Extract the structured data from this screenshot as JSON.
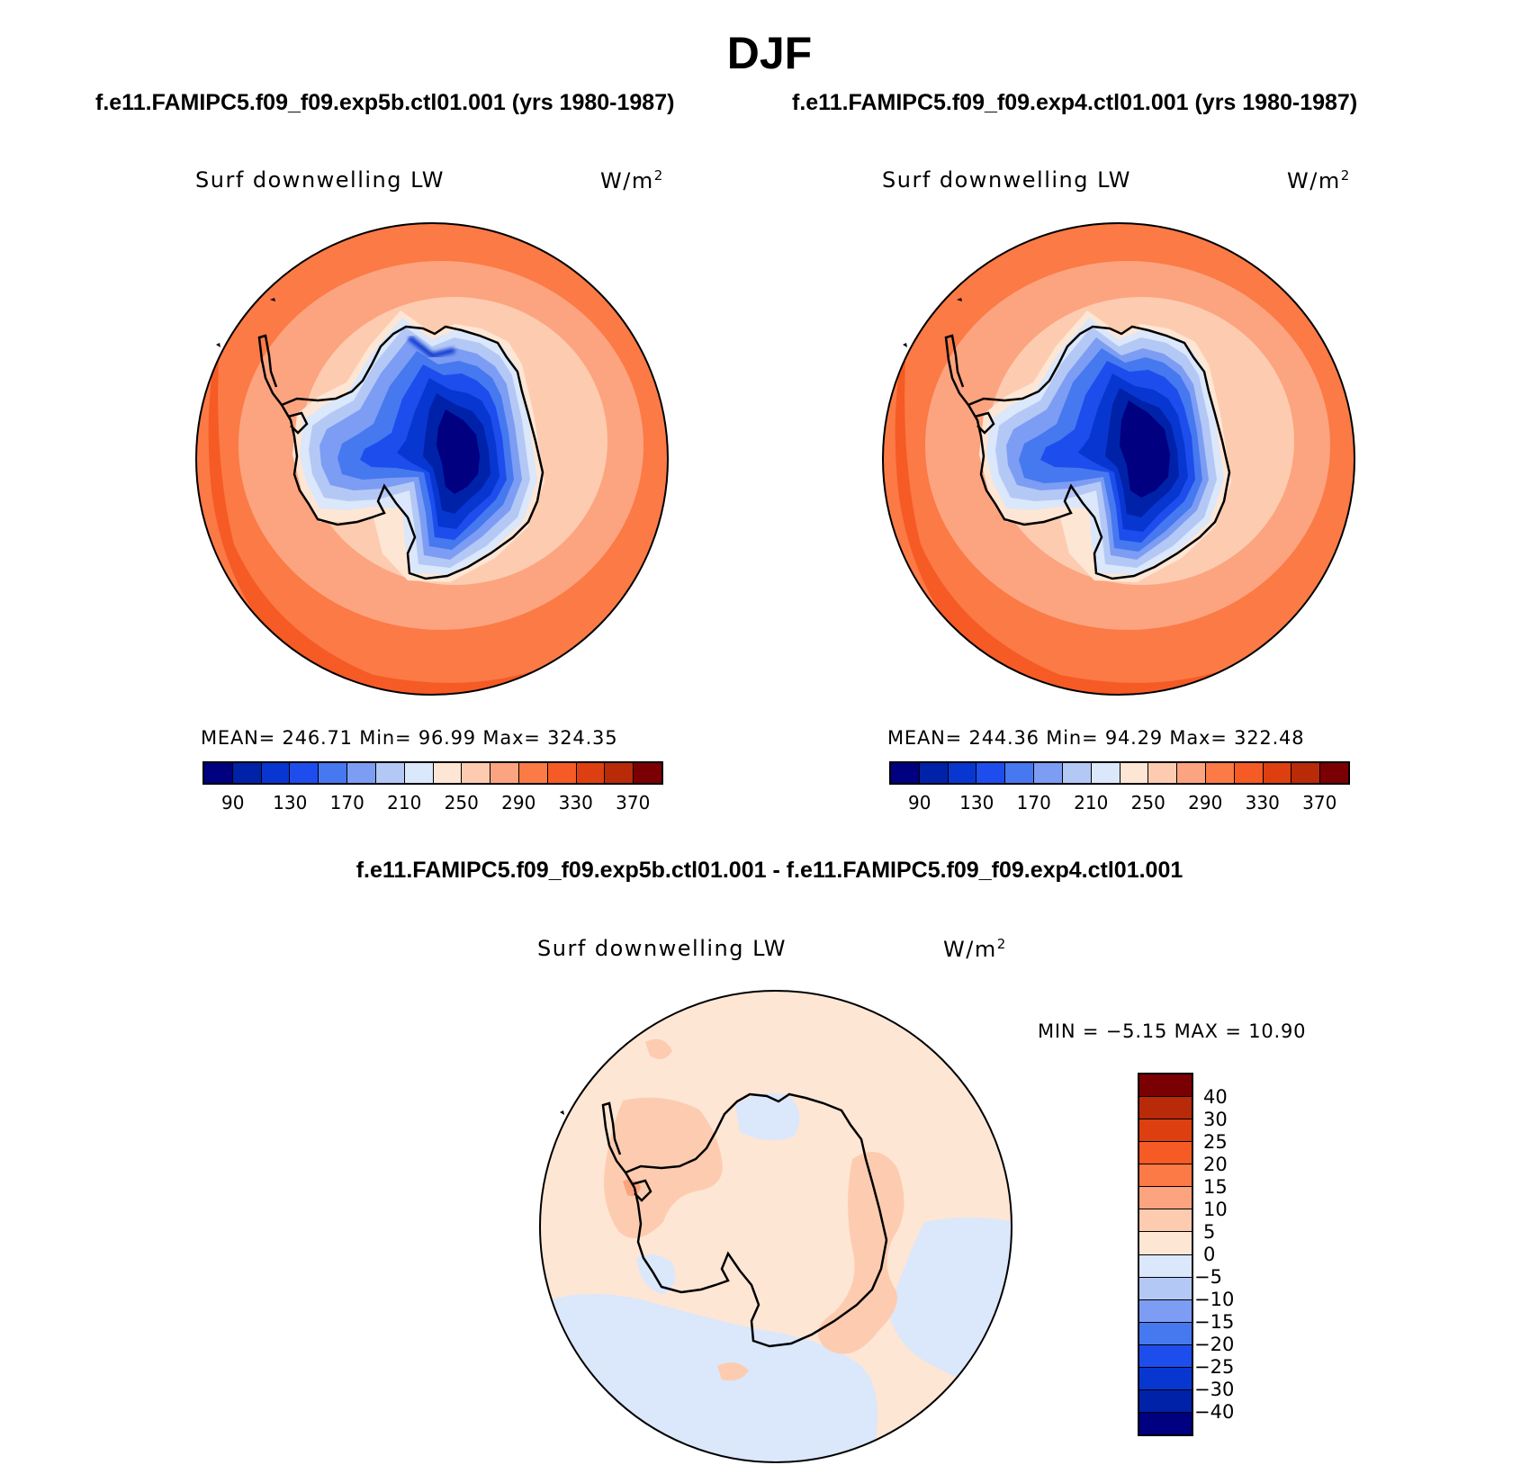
{
  "figure_title": "DJF",
  "panels": [
    {
      "case_title": "f.e11.FAMIPC5.f09_f09.exp5b.ctl01.001 (yrs 1980-1987)",
      "variable": "Surf downwelling LW",
      "units": "W/m",
      "units_sup": "2",
      "stats": "MEAN= 246.71   Min=   96.99   Max= 324.35"
    },
    {
      "case_title": "f.e11.FAMIPC5.f09_f09.exp4.ctl01.001 (yrs 1980-1987)",
      "variable": "Surf downwelling LW",
      "units": "W/m",
      "units_sup": "2",
      "stats": "MEAN= 244.36   Min=   94.29   Max= 322.48"
    }
  ],
  "difference": {
    "title": "f.e11.FAMIPC5.f09_f09.exp5b.ctl01.001 - f.e11.FAMIPC5.f09_f09.exp4.ctl01.001",
    "variable": "Surf downwelling LW",
    "units": "W/m",
    "units_sup": "2",
    "stats": "MIN =   −5.15 MAX =   10.90"
  },
  "abs_colorbar": {
    "colors": [
      "#000080",
      "#0022a8",
      "#0737d0",
      "#1d4ded",
      "#4678f0",
      "#7c9df3",
      "#b4c8f6",
      "#dbe7fa",
      "#fee6d5",
      "#fdccb0",
      "#fca47f",
      "#fb7a46",
      "#f65a25",
      "#dd3f10",
      "#b82a08",
      "#7a0003"
    ],
    "tick_labels": [
      "90",
      "130",
      "170",
      "210",
      "250",
      "290",
      "330",
      "370"
    ]
  },
  "diff_colorbar": {
    "colors": [
      "#7a0003",
      "#b82a08",
      "#dd3f10",
      "#f65a25",
      "#fb7a46",
      "#fca47f",
      "#fdccb0",
      "#fee6d5",
      "#dbe7fa",
      "#b4c8f6",
      "#7c9df3",
      "#4678f0",
      "#1d4ded",
      "#0737d0",
      "#0022a8",
      "#000080"
    ],
    "tick_labels": [
      "40",
      "30",
      "25",
      "20",
      "15",
      "10",
      "5",
      "0",
      "−5",
      "−10",
      "−15",
      "−20",
      "−25",
      "−30",
      "−40"
    ]
  }
}
